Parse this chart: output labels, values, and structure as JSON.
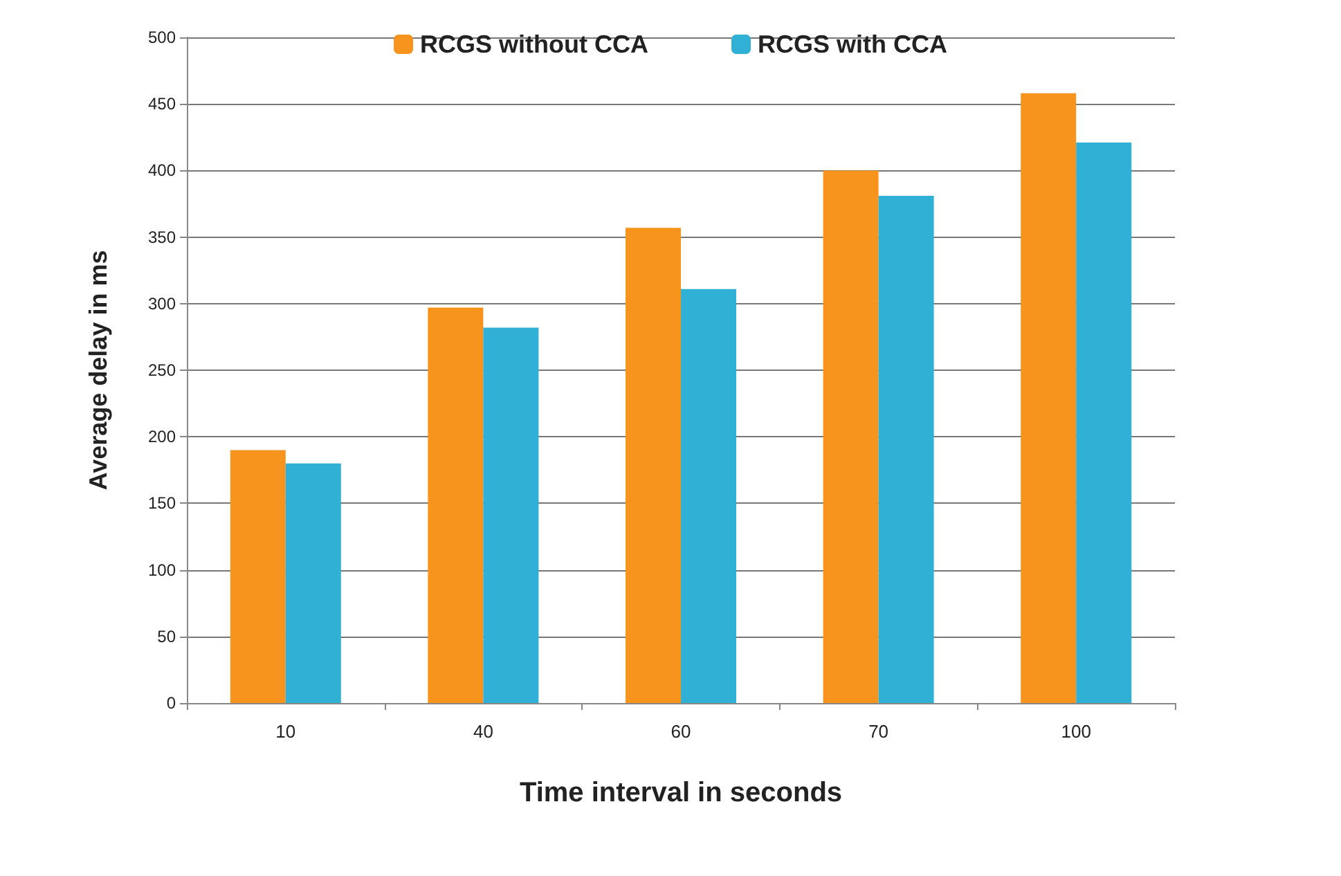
{
  "chart_data": {
    "type": "bar",
    "xlabel": "Time interval in seconds",
    "ylabel": "Average delay in ms",
    "categories": [
      "10",
      "40",
      "60",
      "70",
      "100"
    ],
    "series": [
      {
        "name": "RCGS without CCA",
        "color": "#f7941d",
        "values": [
          190,
          297,
          357,
          400,
          458
        ]
      },
      {
        "name": "RCGS with CCA",
        "color": "#31b0d5",
        "values": [
          180,
          282,
          311,
          381,
          421
        ]
      }
    ],
    "ylim": [
      0,
      500
    ],
    "yticks": [
      0,
      50,
      100,
      150,
      200,
      250,
      300,
      350,
      400,
      450,
      500
    ],
    "grid": "y",
    "legend": "top"
  }
}
